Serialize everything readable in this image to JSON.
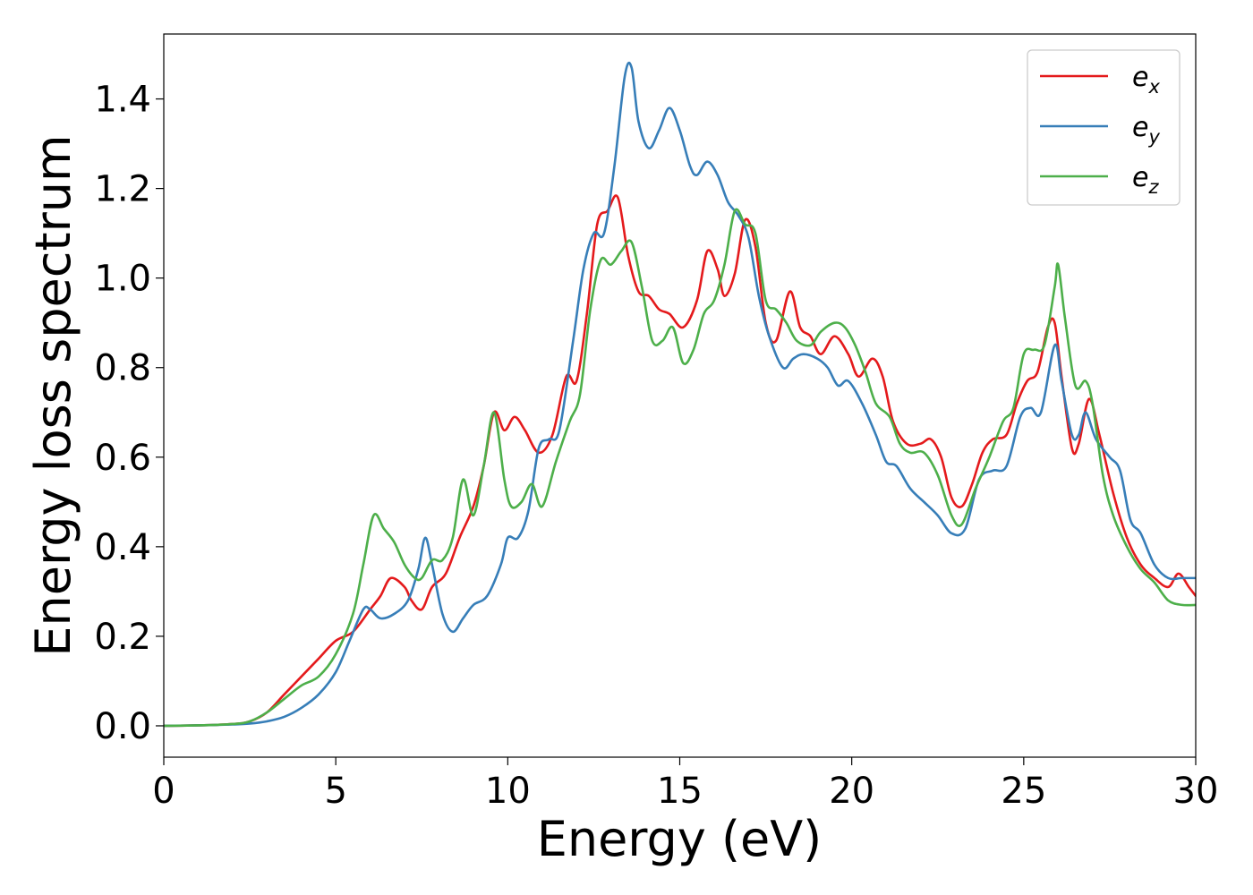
{
  "chart_data": {
    "type": "line",
    "title": "",
    "xlabel": "Energy (eV)",
    "ylabel": "Energy loss spectrum",
    "xlim": [
      0,
      30
    ],
    "ylim": [
      -0.07,
      1.545
    ],
    "xticks": [
      "0",
      "5",
      "10",
      "15",
      "20",
      "25",
      "30"
    ],
    "yticks": [
      "0.0",
      "0.2",
      "0.4",
      "0.6",
      "0.8",
      "1.0",
      "1.2",
      "1.4"
    ],
    "grid": false,
    "legend_position": "top-right",
    "series": [
      {
        "name": "e",
        "subscript": "x",
        "color": "#e41a1c",
        "points": [
          [
            0,
            0
          ],
          [
            1,
            0.001
          ],
          [
            2,
            0.004
          ],
          [
            2.5,
            0.01
          ],
          [
            3,
            0.03
          ],
          [
            3.5,
            0.07
          ],
          [
            4,
            0.11
          ],
          [
            4.5,
            0.15
          ],
          [
            5,
            0.19
          ],
          [
            5.5,
            0.21
          ],
          [
            6,
            0.26
          ],
          [
            6.3,
            0.29
          ],
          [
            6.6,
            0.33
          ],
          [
            7,
            0.31
          ],
          [
            7.2,
            0.28
          ],
          [
            7.5,
            0.26
          ],
          [
            7.8,
            0.31
          ],
          [
            8.2,
            0.34
          ],
          [
            8.6,
            0.42
          ],
          [
            9,
            0.49
          ],
          [
            9.3,
            0.58
          ],
          [
            9.6,
            0.7
          ],
          [
            9.9,
            0.66
          ],
          [
            10.2,
            0.69
          ],
          [
            10.5,
            0.66
          ],
          [
            10.9,
            0.61
          ],
          [
            11.3,
            0.65
          ],
          [
            11.7,
            0.78
          ],
          [
            12,
            0.77
          ],
          [
            12.3,
            0.92
          ],
          [
            12.6,
            1.12
          ],
          [
            12.9,
            1.15
          ],
          [
            13.2,
            1.18
          ],
          [
            13.5,
            1.05
          ],
          [
            13.8,
            0.97
          ],
          [
            14.1,
            0.96
          ],
          [
            14.4,
            0.93
          ],
          [
            14.7,
            0.92
          ],
          [
            15.1,
            0.89
          ],
          [
            15.5,
            0.95
          ],
          [
            15.8,
            1.06
          ],
          [
            16.1,
            1.02
          ],
          [
            16.3,
            0.96
          ],
          [
            16.6,
            1.01
          ],
          [
            16.9,
            1.13
          ],
          [
            17.2,
            1.07
          ],
          [
            17.5,
            0.9
          ],
          [
            17.8,
            0.86
          ],
          [
            18.2,
            0.97
          ],
          [
            18.5,
            0.89
          ],
          [
            18.8,
            0.87
          ],
          [
            19.1,
            0.83
          ],
          [
            19.5,
            0.87
          ],
          [
            19.9,
            0.83
          ],
          [
            20.2,
            0.78
          ],
          [
            20.6,
            0.82
          ],
          [
            20.9,
            0.78
          ],
          [
            21.2,
            0.68
          ],
          [
            21.6,
            0.63
          ],
          [
            22,
            0.63
          ],
          [
            22.3,
            0.64
          ],
          [
            22.6,
            0.6
          ],
          [
            22.9,
            0.51
          ],
          [
            23.2,
            0.49
          ],
          [
            23.5,
            0.54
          ],
          [
            23.8,
            0.61
          ],
          [
            24.1,
            0.64
          ],
          [
            24.5,
            0.65
          ],
          [
            24.8,
            0.72
          ],
          [
            25.1,
            0.77
          ],
          [
            25.4,
            0.79
          ],
          [
            25.7,
            0.89
          ],
          [
            25.9,
            0.9
          ],
          [
            26.1,
            0.78
          ],
          [
            26.4,
            0.62
          ],
          [
            26.6,
            0.63
          ],
          [
            26.9,
            0.73
          ],
          [
            27.2,
            0.65
          ],
          [
            27.6,
            0.52
          ],
          [
            28,
            0.42
          ],
          [
            28.4,
            0.36
          ],
          [
            28.8,
            0.33
          ],
          [
            29.2,
            0.31
          ],
          [
            29.5,
            0.34
          ],
          [
            29.8,
            0.31
          ],
          [
            30,
            0.29
          ]
        ]
      },
      {
        "name": "e",
        "subscript": "y",
        "color": "#377eb8",
        "points": [
          [
            0,
            0
          ],
          [
            1,
            0.001
          ],
          [
            2,
            0.003
          ],
          [
            2.5,
            0.005
          ],
          [
            3,
            0.01
          ],
          [
            3.5,
            0.02
          ],
          [
            4,
            0.04
          ],
          [
            4.5,
            0.07
          ],
          [
            5,
            0.12
          ],
          [
            5.4,
            0.19
          ],
          [
            5.8,
            0.26
          ],
          [
            6,
            0.26
          ],
          [
            6.3,
            0.24
          ],
          [
            6.7,
            0.25
          ],
          [
            7.1,
            0.28
          ],
          [
            7.4,
            0.35
          ],
          [
            7.6,
            0.42
          ],
          [
            7.8,
            0.36
          ],
          [
            8.1,
            0.25
          ],
          [
            8.4,
            0.21
          ],
          [
            8.7,
            0.24
          ],
          [
            9,
            0.27
          ],
          [
            9.4,
            0.29
          ],
          [
            9.8,
            0.36
          ],
          [
            10,
            0.42
          ],
          [
            10.3,
            0.42
          ],
          [
            10.6,
            0.48
          ],
          [
            10.9,
            0.62
          ],
          [
            11.2,
            0.64
          ],
          [
            11.5,
            0.66
          ],
          [
            11.9,
            0.86
          ],
          [
            12.2,
            1.02
          ],
          [
            12.5,
            1.1
          ],
          [
            12.8,
            1.1
          ],
          [
            13.1,
            1.25
          ],
          [
            13.4,
            1.45
          ],
          [
            13.6,
            1.47
          ],
          [
            13.8,
            1.35
          ],
          [
            14.1,
            1.29
          ],
          [
            14.4,
            1.33
          ],
          [
            14.7,
            1.38
          ],
          [
            15,
            1.33
          ],
          [
            15.3,
            1.25
          ],
          [
            15.5,
            1.23
          ],
          [
            15.8,
            1.26
          ],
          [
            16.1,
            1.23
          ],
          [
            16.4,
            1.17
          ],
          [
            16.7,
            1.14
          ],
          [
            17,
            1.09
          ],
          [
            17.3,
            0.96
          ],
          [
            17.6,
            0.87
          ],
          [
            18,
            0.8
          ],
          [
            18.3,
            0.82
          ],
          [
            18.6,
            0.83
          ],
          [
            19,
            0.82
          ],
          [
            19.3,
            0.8
          ],
          [
            19.6,
            0.76
          ],
          [
            19.9,
            0.77
          ],
          [
            20.3,
            0.72
          ],
          [
            20.7,
            0.65
          ],
          [
            21,
            0.59
          ],
          [
            21.3,
            0.58
          ],
          [
            21.7,
            0.53
          ],
          [
            22.1,
            0.5
          ],
          [
            22.5,
            0.47
          ],
          [
            22.9,
            0.43
          ],
          [
            23.3,
            0.44
          ],
          [
            23.7,
            0.55
          ],
          [
            24.1,
            0.57
          ],
          [
            24.5,
            0.58
          ],
          [
            24.9,
            0.69
          ],
          [
            25.2,
            0.71
          ],
          [
            25.5,
            0.7
          ],
          [
            25.9,
            0.85
          ],
          [
            26.1,
            0.77
          ],
          [
            26.4,
            0.65
          ],
          [
            26.6,
            0.65
          ],
          [
            26.8,
            0.7
          ],
          [
            27.1,
            0.64
          ],
          [
            27.5,
            0.6
          ],
          [
            27.8,
            0.57
          ],
          [
            28.1,
            0.46
          ],
          [
            28.4,
            0.43
          ],
          [
            28.8,
            0.36
          ],
          [
            29.2,
            0.33
          ],
          [
            29.6,
            0.33
          ],
          [
            30,
            0.33
          ]
        ]
      },
      {
        "name": "e",
        "subscript": "z",
        "color": "#4daf4a",
        "points": [
          [
            0,
            0
          ],
          [
            1,
            0.001
          ],
          [
            2,
            0.004
          ],
          [
            2.5,
            0.01
          ],
          [
            3,
            0.03
          ],
          [
            3.5,
            0.06
          ],
          [
            4,
            0.09
          ],
          [
            4.5,
            0.11
          ],
          [
            5,
            0.16
          ],
          [
            5.5,
            0.25
          ],
          [
            5.8,
            0.36
          ],
          [
            6.1,
            0.47
          ],
          [
            6.4,
            0.44
          ],
          [
            6.7,
            0.41
          ],
          [
            7,
            0.36
          ],
          [
            7.3,
            0.33
          ],
          [
            7.5,
            0.33
          ],
          [
            7.8,
            0.37
          ],
          [
            8.1,
            0.37
          ],
          [
            8.4,
            0.42
          ],
          [
            8.7,
            0.55
          ],
          [
            9,
            0.47
          ],
          [
            9.3,
            0.58
          ],
          [
            9.6,
            0.7
          ],
          [
            9.9,
            0.55
          ],
          [
            10.1,
            0.49
          ],
          [
            10.4,
            0.5
          ],
          [
            10.7,
            0.54
          ],
          [
            11,
            0.49
          ],
          [
            11.4,
            0.59
          ],
          [
            11.8,
            0.68
          ],
          [
            12.1,
            0.74
          ],
          [
            12.4,
            0.93
          ],
          [
            12.7,
            1.04
          ],
          [
            13,
            1.03
          ],
          [
            13.3,
            1.06
          ],
          [
            13.6,
            1.08
          ],
          [
            13.9,
            0.98
          ],
          [
            14.2,
            0.86
          ],
          [
            14.5,
            0.86
          ],
          [
            14.8,
            0.89
          ],
          [
            15.1,
            0.81
          ],
          [
            15.4,
            0.84
          ],
          [
            15.7,
            0.92
          ],
          [
            16,
            0.95
          ],
          [
            16.3,
            1.03
          ],
          [
            16.6,
            1.15
          ],
          [
            16.9,
            1.12
          ],
          [
            17.2,
            1.1
          ],
          [
            17.5,
            0.95
          ],
          [
            17.8,
            0.93
          ],
          [
            18.1,
            0.9
          ],
          [
            18.4,
            0.86
          ],
          [
            18.8,
            0.85
          ],
          [
            19.1,
            0.88
          ],
          [
            19.5,
            0.9
          ],
          [
            19.8,
            0.89
          ],
          [
            20.1,
            0.85
          ],
          [
            20.4,
            0.79
          ],
          [
            20.7,
            0.72
          ],
          [
            21.1,
            0.69
          ],
          [
            21.4,
            0.63
          ],
          [
            21.7,
            0.61
          ],
          [
            22.1,
            0.61
          ],
          [
            22.5,
            0.56
          ],
          [
            22.9,
            0.47
          ],
          [
            23.2,
            0.45
          ],
          [
            23.6,
            0.53
          ],
          [
            24,
            0.6
          ],
          [
            24.4,
            0.68
          ],
          [
            24.7,
            0.71
          ],
          [
            25,
            0.83
          ],
          [
            25.3,
            0.84
          ],
          [
            25.6,
            0.85
          ],
          [
            25.9,
            0.98
          ],
          [
            26,
            1.03
          ],
          [
            26.2,
            0.91
          ],
          [
            26.5,
            0.76
          ],
          [
            26.8,
            0.77
          ],
          [
            27,
            0.72
          ],
          [
            27.3,
            0.56
          ],
          [
            27.6,
            0.47
          ],
          [
            28,
            0.4
          ],
          [
            28.4,
            0.35
          ],
          [
            28.8,
            0.32
          ],
          [
            29.2,
            0.28
          ],
          [
            29.6,
            0.27
          ],
          [
            30,
            0.27
          ]
        ]
      }
    ]
  }
}
